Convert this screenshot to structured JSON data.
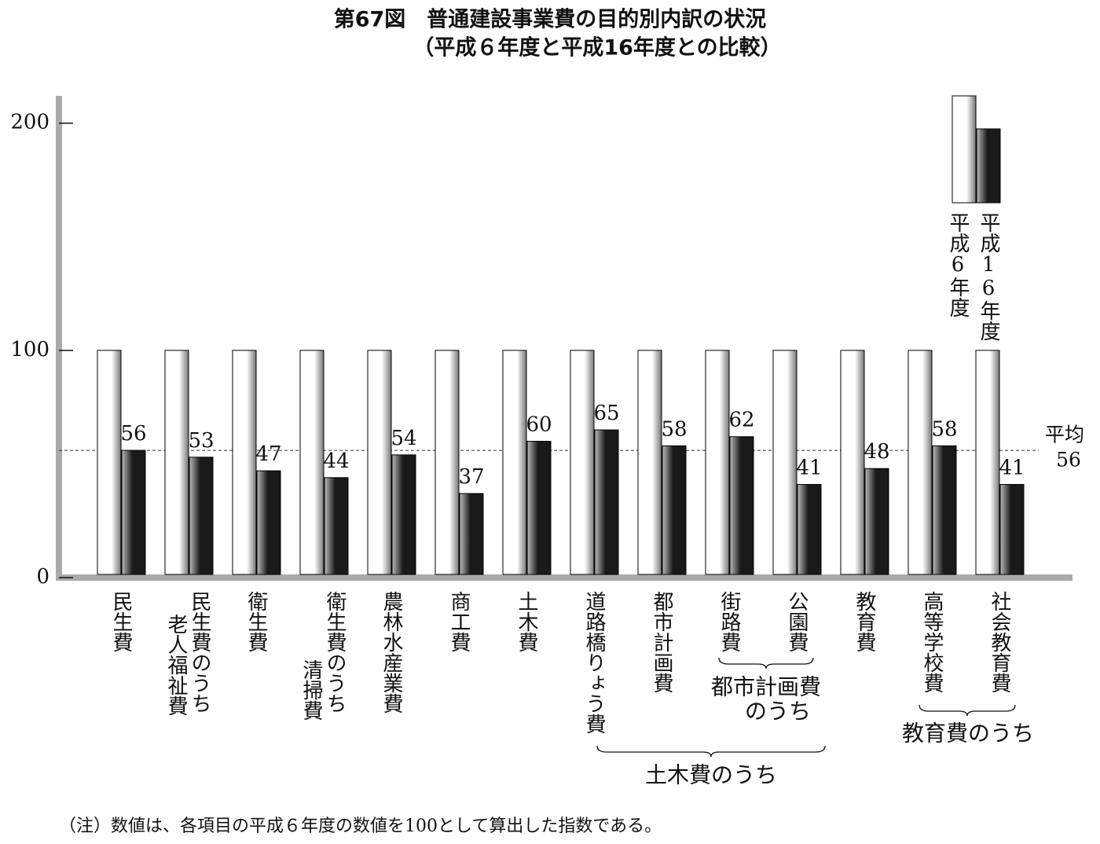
{
  "chart_data": {
    "type": "bar",
    "title": "第67図　普通建設事業費の目的別内訳の状況",
    "subtitle": "（平成６年度と平成16年度との比較）",
    "categories": [
      [
        "民生費"
      ],
      [
        "民生費のうち",
        "老人福祉費"
      ],
      [
        "衛生費"
      ],
      [
        "衛生費のうち",
        "清掃費"
      ],
      [
        "農林水産業費"
      ],
      [
        "商工費"
      ],
      [
        "土木費"
      ],
      [
        "道路橋りょう費"
      ],
      [
        "都市計画費"
      ],
      [
        "街路費"
      ],
      [
        "公園費"
      ],
      [
        "教育費"
      ],
      [
        "高等学校費"
      ],
      [
        "社会教育費"
      ]
    ],
    "series": [
      {
        "name": "平成6年度",
        "color": "#ffffff",
        "values": [
          100,
          100,
          100,
          100,
          100,
          100,
          100,
          100,
          100,
          100,
          100,
          100,
          100,
          100
        ]
      },
      {
        "name": "平成16年度",
        "color": "#1a1a1a",
        "values": [
          56,
          53,
          47,
          44,
          54,
          37,
          60,
          65,
          58,
          62,
          41,
          48,
          58,
          41
        ]
      }
    ],
    "average": {
      "label": "平均",
      "value": 56
    },
    "groups": [
      [
        "都市計画費",
        "のうち"
      ],
      [
        "土木費のうち"
      ],
      [
        "教育費のうち"
      ]
    ],
    "ylim": [
      0,
      212
    ],
    "yticks": [
      0,
      100,
      200
    ],
    "note": "（注）数値は、各項目の平成６年度の数値を100として算出した指数である。"
  }
}
